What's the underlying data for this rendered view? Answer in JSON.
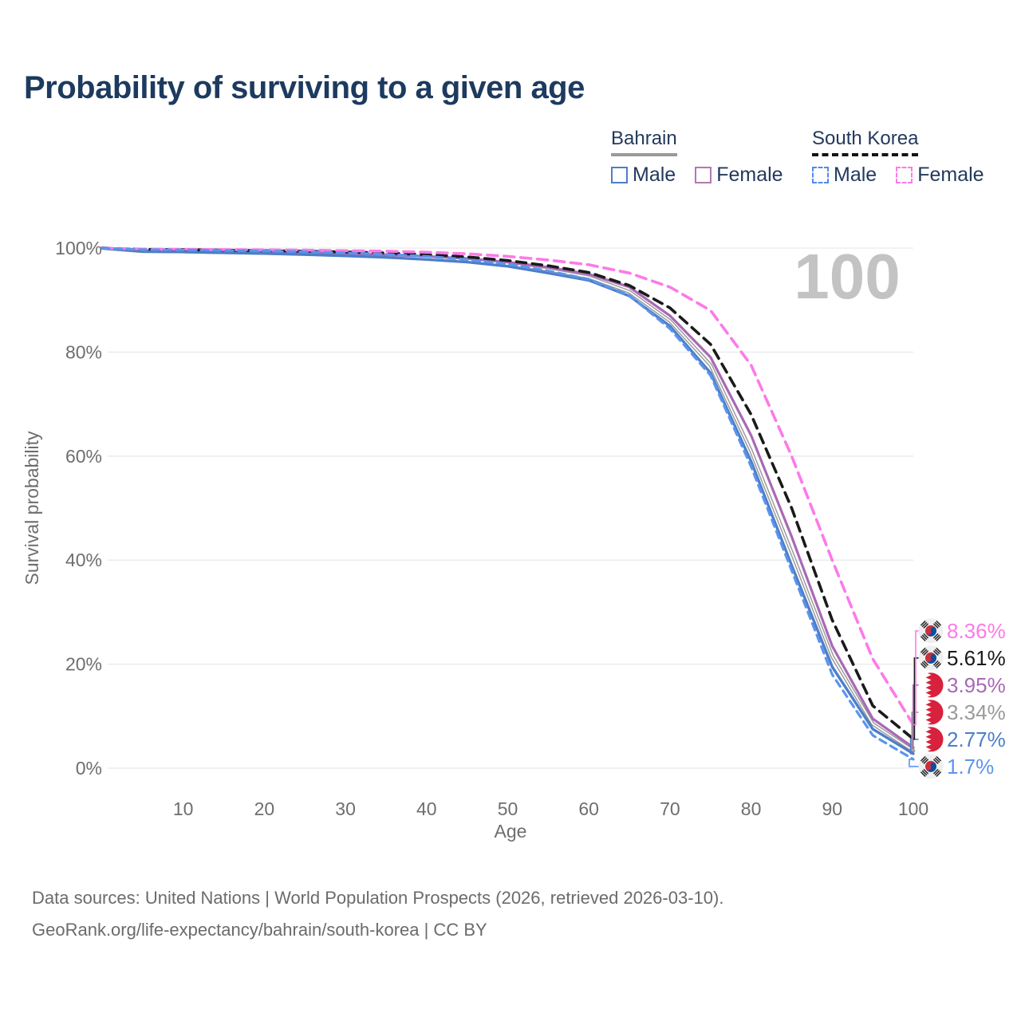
{
  "title": "Probability of surviving to a given age",
  "legend": {
    "groups": [
      {
        "name": "Bahrain",
        "line_style": "solid",
        "line_color": "#9a9a9a",
        "items": [
          {
            "label": "Male",
            "color": "#4d7ec8",
            "dashed": false
          },
          {
            "label": "Female",
            "color": "#b279ae",
            "dashed": false
          }
        ]
      },
      {
        "name": "South Korea",
        "line_style": "dashed",
        "line_color": "#141414",
        "items": [
          {
            "label": "Male",
            "color": "#4f8bf0",
            "dashed": true
          },
          {
            "label": "Female",
            "color": "#fc7ae8",
            "dashed": true
          }
        ]
      }
    ]
  },
  "chart_data": {
    "type": "line",
    "title": "Probability of surviving to a given age",
    "xlabel": "Age",
    "ylabel": "Survival probability",
    "xlim": [
      0,
      100
    ],
    "ylim": [
      0,
      100
    ],
    "grid": "horizontal",
    "watermark": "100",
    "x_axis": {
      "ticks": [
        10,
        20,
        30,
        40,
        50,
        60,
        70,
        80,
        90,
        100
      ]
    },
    "y_axis": {
      "ticks": [
        {
          "value": 0,
          "label": "0%"
        },
        {
          "value": 20,
          "label": "20%"
        },
        {
          "value": 40,
          "label": "40%"
        },
        {
          "value": 60,
          "label": "60%"
        },
        {
          "value": 80,
          "label": "80%"
        },
        {
          "value": 100,
          "label": "100%"
        }
      ]
    },
    "ages": [
      0,
      5,
      10,
      15,
      20,
      25,
      30,
      35,
      40,
      45,
      50,
      55,
      60,
      65,
      70,
      75,
      80,
      85,
      90,
      95,
      100
    ],
    "series": [
      {
        "id": "sk_female",
        "name": "South Korea Female",
        "country": "kr",
        "color": "#fc7ae8",
        "dash": "13 8",
        "width": 3.6,
        "end_value": 8.36,
        "end_label": "8.36%",
        "values": [
          100,
          99.8,
          99.75,
          99.7,
          99.65,
          99.6,
          99.5,
          99.4,
          99.2,
          98.9,
          98.4,
          97.7,
          96.8,
          95.2,
          92.5,
          88,
          77.5,
          60,
          40,
          21,
          8.36
        ]
      },
      {
        "id": "sk_total",
        "name": "South Korea Total",
        "country": "kr",
        "color": "#1a1a1a",
        "dash": "12 8",
        "width": 3.6,
        "end_value": 5.61,
        "end_label": "5.61%",
        "values": [
          100,
          99.75,
          99.7,
          99.6,
          99.5,
          99.4,
          99.25,
          99.05,
          98.75,
          98.3,
          97.6,
          96.6,
          95.3,
          92.8,
          88.5,
          81.5,
          68,
          50,
          28.5,
          12,
          5.61
        ]
      },
      {
        "id": "bh_female",
        "name": "Bahrain Female",
        "country": "bh",
        "color": "#a869b5",
        "dash": "",
        "width": 3.2,
        "end_value": 3.95,
        "end_label": "3.95%",
        "values": [
          100,
          99.5,
          99.45,
          99.35,
          99.25,
          99.1,
          98.95,
          98.7,
          98.4,
          98,
          97.3,
          96.3,
          95,
          92.5,
          87,
          79,
          64,
          44.5,
          23.5,
          9.5,
          3.95
        ]
      },
      {
        "id": "bh_total",
        "name": "Bahrain Total",
        "country": "bh",
        "color": "#9a9a9a",
        "dash": "",
        "width": 4.6,
        "end_value": 3.34,
        "end_label": "3.34%",
        "values": [
          100,
          99.4,
          99.35,
          99.2,
          99.05,
          98.9,
          98.7,
          98.4,
          98.1,
          97.6,
          96.9,
          95.8,
          94.4,
          91.6,
          86,
          77.5,
          61,
          41.5,
          21.5,
          8.5,
          3.34
        ]
      },
      {
        "id": "bh_male",
        "name": "Bahrain Male",
        "country": "bh",
        "color": "#4d7ec8",
        "dash": "",
        "width": 3.4,
        "end_value": 2.77,
        "end_label": "2.77%",
        "values": [
          100,
          99.35,
          99.25,
          99.1,
          98.95,
          98.75,
          98.5,
          98.2,
          97.8,
          97.3,
          96.5,
          95.2,
          93.8,
          90.8,
          85,
          76,
          59,
          39,
          19.5,
          7.5,
          2.77
        ]
      },
      {
        "id": "sk_male",
        "name": "South Korea Male",
        "country": "kr",
        "color": "#5b94ef",
        "dash": "9 6.5",
        "width": 3.2,
        "end_value": 1.7,
        "end_label": "1.7%",
        "values": [
          100,
          99.7,
          99.65,
          99.55,
          99.45,
          99.3,
          99.1,
          98.8,
          98.4,
          97.8,
          96.9,
          95.6,
          94,
          90.9,
          84.5,
          75.5,
          58,
          38,
          18,
          6.3,
          1.7
        ]
      }
    ]
  },
  "footer": {
    "line1": "Data sources: United Nations | World Population Prospects (2026, retrieved 2026-03-10).",
    "line2": "GeoRank.org/life-expectancy/bahrain/south-korea | CC BY"
  }
}
